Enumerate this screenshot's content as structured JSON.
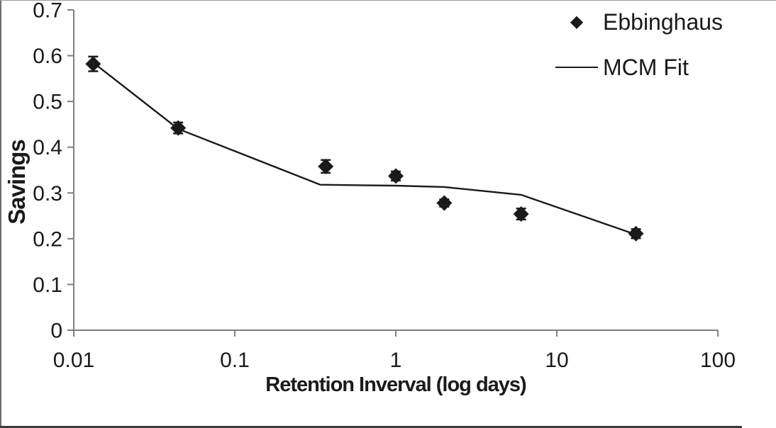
{
  "chart_data": {
    "type": "scatter",
    "title": "",
    "xlabel": "Retention Inverval (log days)",
    "ylabel": "Savings",
    "x_scale": "log",
    "xlim": [
      0.01,
      100
    ],
    "ylim": [
      0,
      0.7
    ],
    "x_ticks": [
      0.01,
      0.1,
      1,
      10,
      100
    ],
    "x_tick_labels": [
      "0.01",
      "0.1",
      "1",
      "10",
      "100"
    ],
    "y_ticks": [
      0,
      0.1,
      0.2,
      0.3,
      0.4,
      0.5,
      0.6,
      0.7
    ],
    "y_tick_labels": [
      "0",
      "0.1",
      "0.2",
      "0.3",
      "0.4",
      "0.5",
      "0.6",
      "0.7"
    ],
    "grid": false,
    "legend_position": "top-right",
    "colors": {
      "ink": "#1a1a1a",
      "axis": "#808080",
      "background": "#ffffff"
    },
    "series": [
      {
        "name": "Ebbinghaus",
        "type": "scatter",
        "marker": "diamond",
        "x": [
          0.0132,
          0.0445,
          0.367,
          1,
          2,
          6,
          31
        ],
        "y": [
          0.582,
          0.442,
          0.358,
          0.337,
          0.278,
          0.254,
          0.211
        ],
        "error_y": [
          0.016,
          0.012,
          0.014,
          0.01,
          0.008,
          0.012,
          0.01
        ]
      },
      {
        "name": "MCM Fit",
        "type": "line",
        "x": [
          0.0132,
          0.0445,
          0.34,
          1,
          2,
          6,
          31
        ],
        "y": [
          0.585,
          0.44,
          0.318,
          0.316,
          0.313,
          0.296,
          0.209
        ]
      }
    ]
  }
}
